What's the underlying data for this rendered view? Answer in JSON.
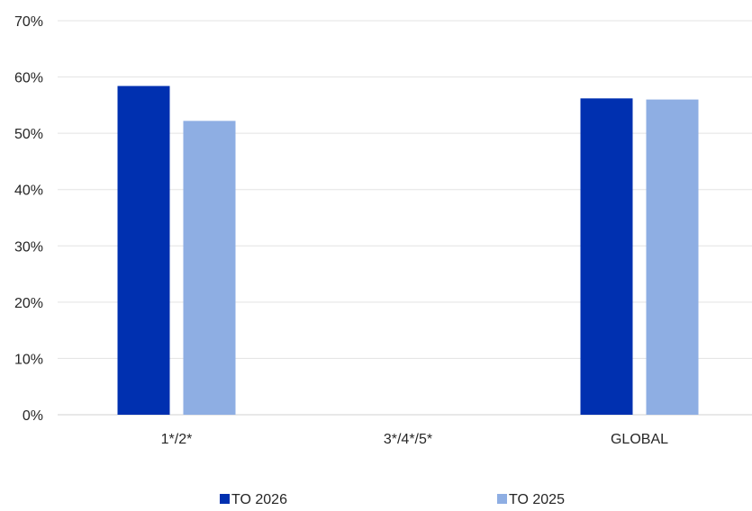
{
  "chart_data": {
    "type": "bar",
    "categories": [
      "1*/2*",
      "3*/4*/5*",
      "GLOBAL"
    ],
    "series": [
      {
        "name": "TO 2026",
        "color": "#0030B0",
        "values": [
          0.584,
          null,
          0.562
        ]
      },
      {
        "name": "TO 2025",
        "color": "#8EAEE3",
        "values": [
          0.522,
          null,
          0.56
        ]
      }
    ],
    "ylim": [
      0,
      0.7
    ],
    "yticks": [
      0,
      0.1,
      0.2,
      0.3,
      0.4,
      0.5,
      0.6,
      0.7
    ],
    "ytick_labels": [
      "0%",
      "10%",
      "20%",
      "30%",
      "40%",
      "50%",
      "60%",
      "70%"
    ],
    "grid": true,
    "legend_position": "bottom",
    "gridline_color": "#E3E3E3",
    "axis_color": "#D0D0D0"
  }
}
